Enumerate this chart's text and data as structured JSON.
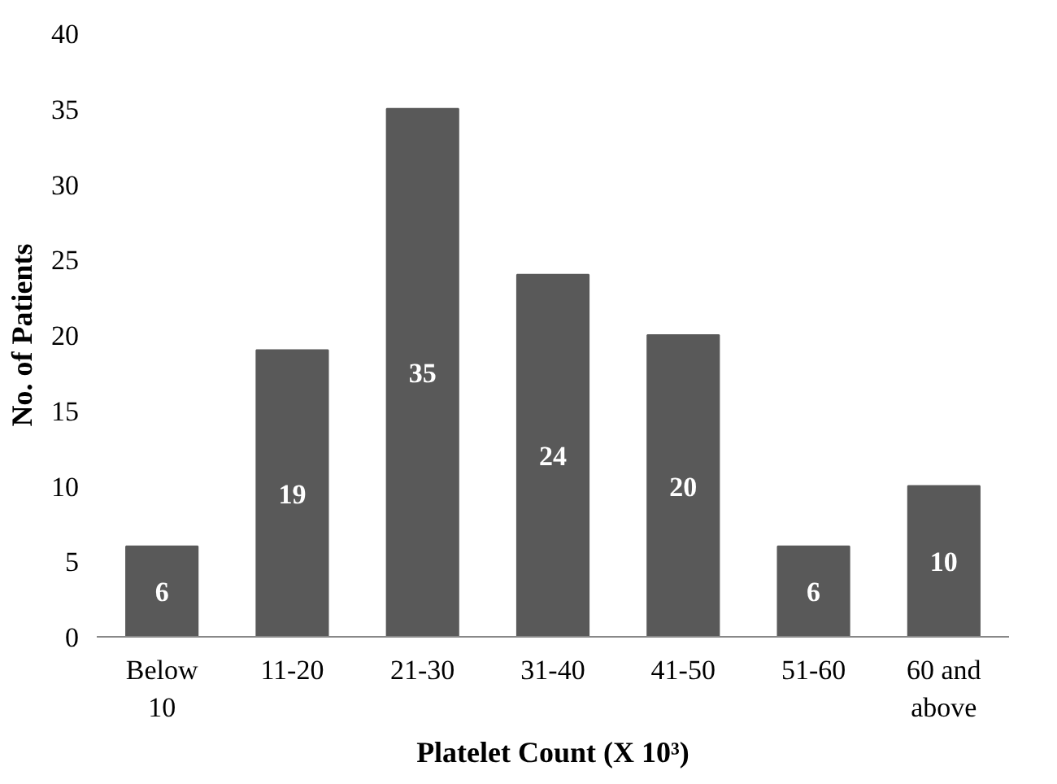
{
  "chart_data": {
    "type": "bar",
    "xlabel": "Platelet Count (X 10³)",
    "ylabel": "No. of Patients",
    "categories": [
      "Below 10",
      "11-20",
      "21-30",
      "31-40",
      "41-50",
      "51-60",
      "60 and above"
    ],
    "values": [
      6,
      19,
      35,
      24,
      20,
      6,
      10
    ],
    "color": "#595959",
    "ylim": [
      0,
      40
    ],
    "yticks": [
      0,
      5,
      10,
      15,
      20,
      25,
      30,
      35,
      40
    ],
    "grid": false,
    "data_labels": true
  }
}
